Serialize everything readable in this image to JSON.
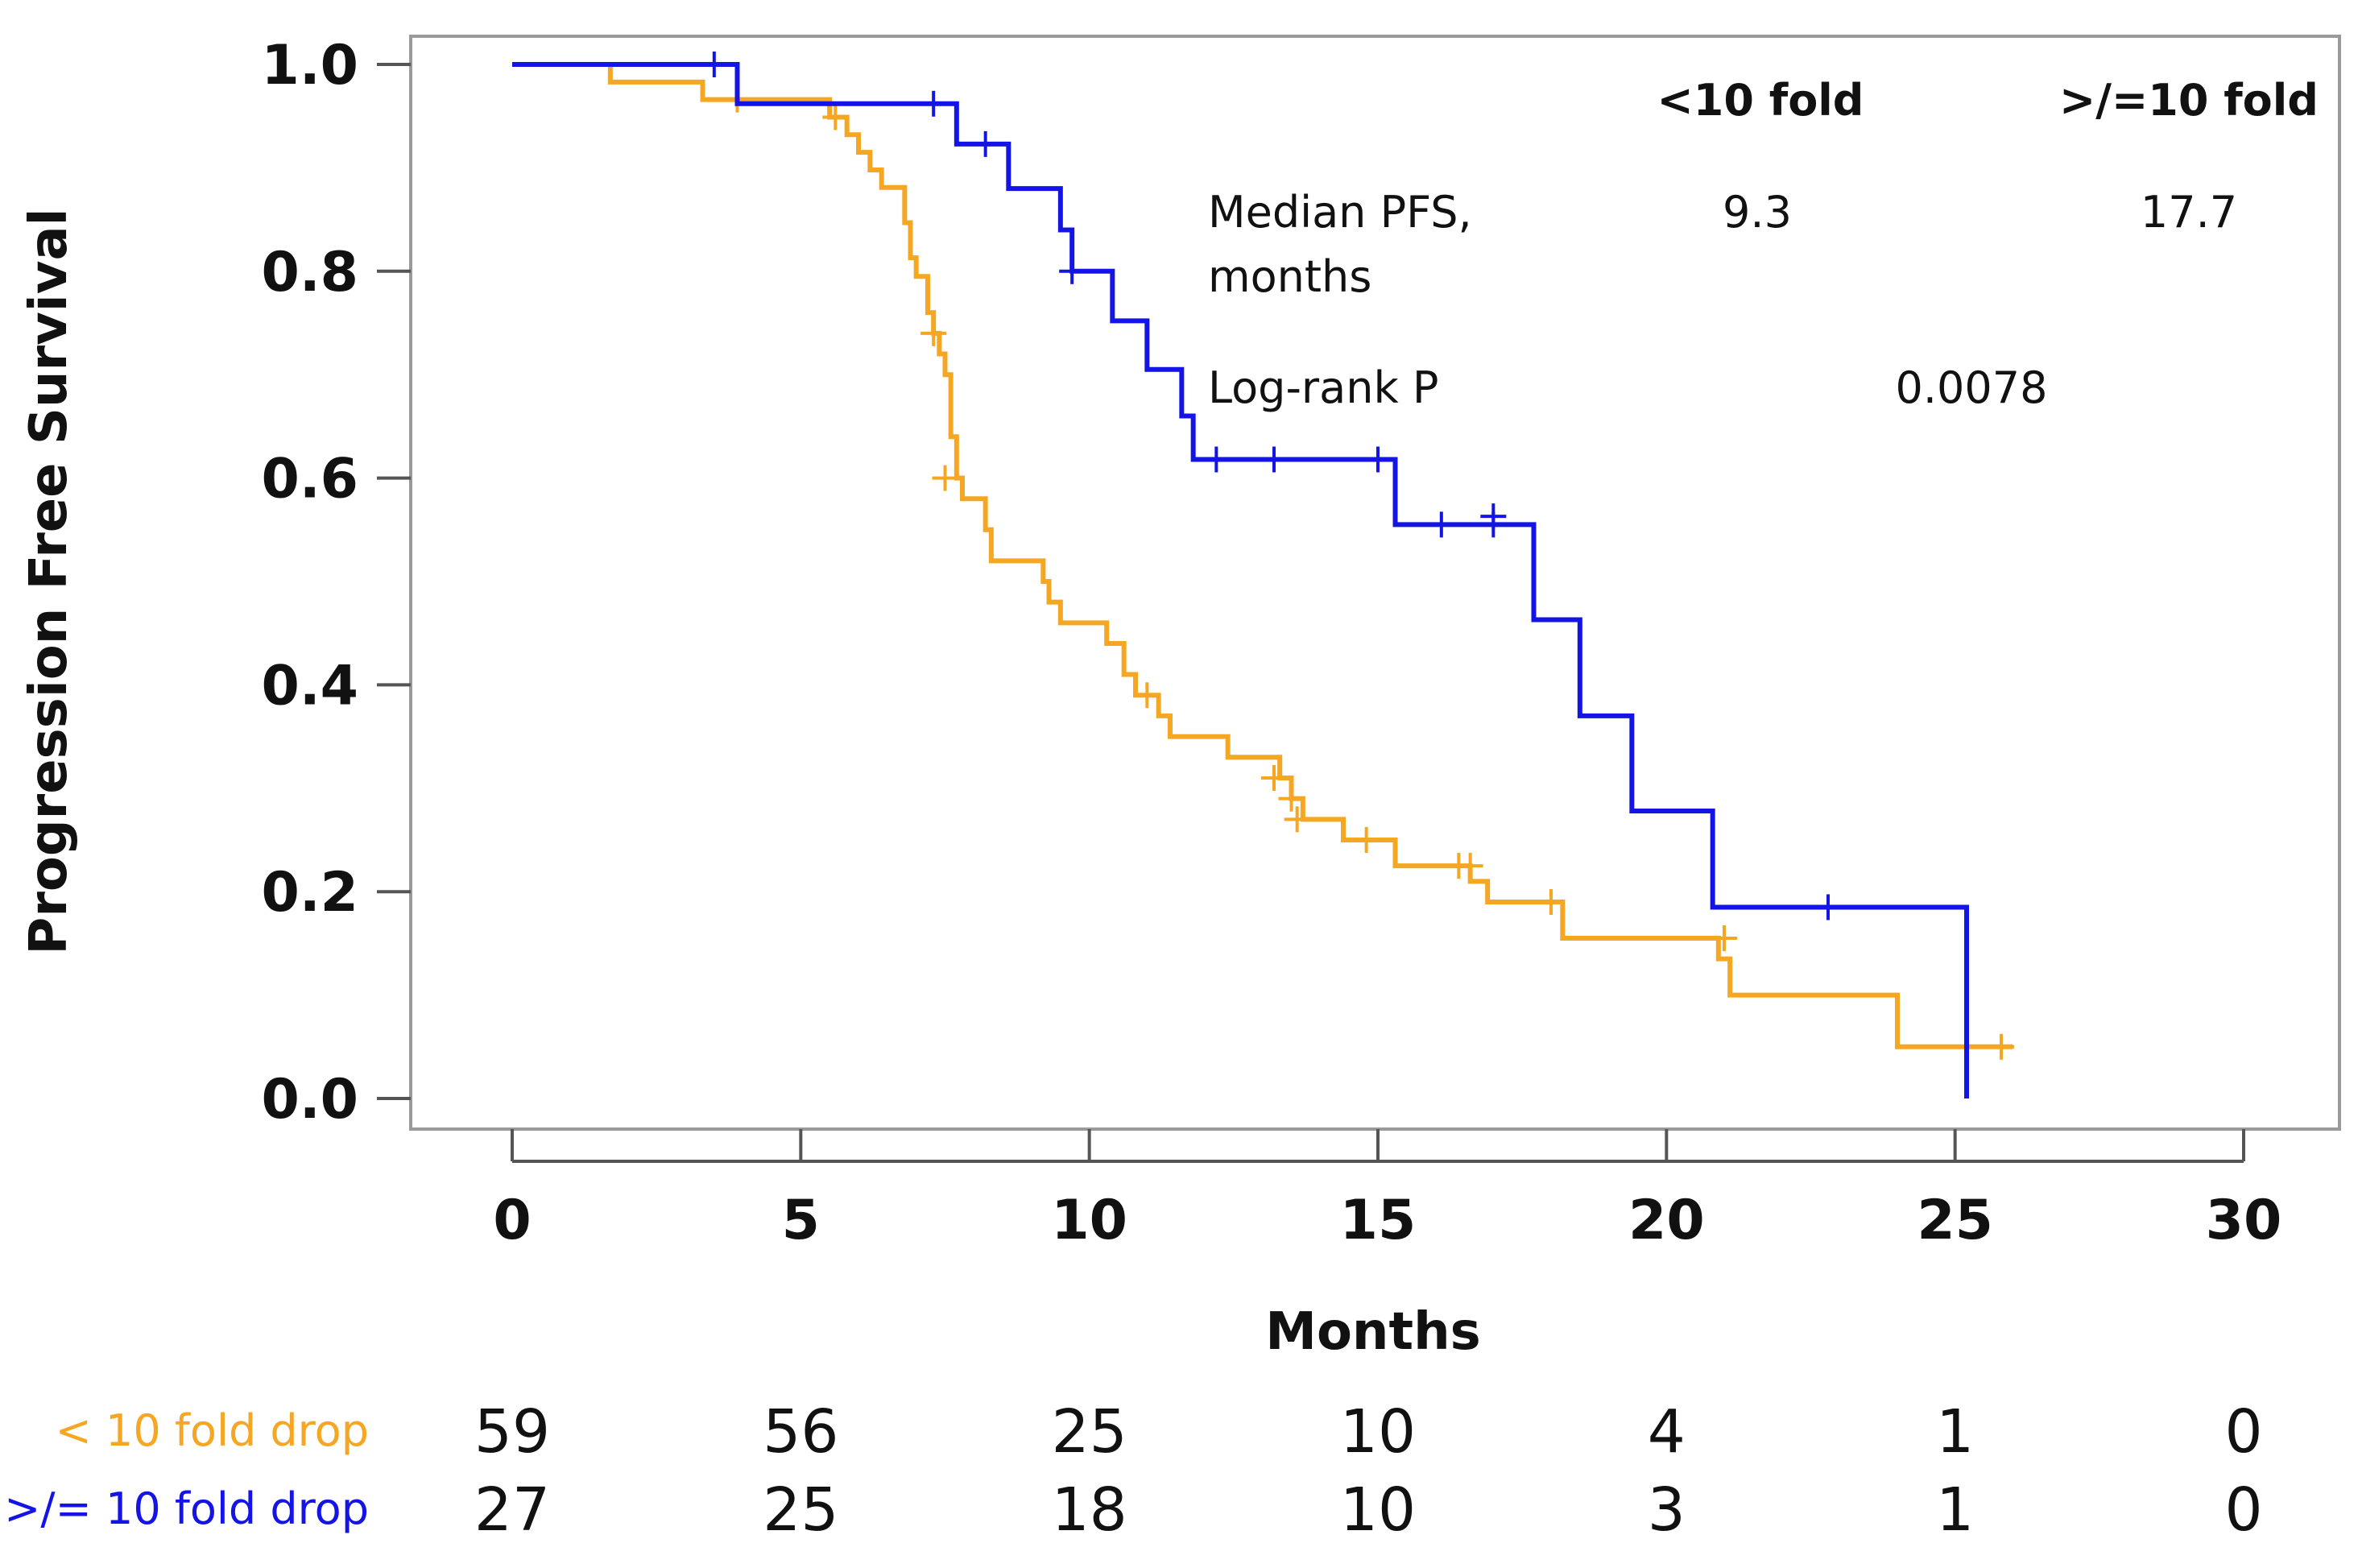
{
  "chart_data": {
    "type": "line",
    "subtype": "kaplan-meier",
    "title": "",
    "xlabel": "Months",
    "ylabel": "Progression Free Survival",
    "xlim": [
      0,
      30
    ],
    "ylim": [
      0,
      1.0
    ],
    "xticks": [
      0,
      5,
      10,
      15,
      20,
      25,
      30
    ],
    "xtick_labels": [
      "0",
      "5",
      "10",
      "15",
      "20",
      "25",
      "30"
    ],
    "yticks": [
      0,
      0.2,
      0.4,
      0.6,
      0.8,
      1.0
    ],
    "ytick_labels": [
      "0.0",
      "0.2",
      "0.4",
      "0.6",
      "0.8",
      "1.0"
    ],
    "grid": false,
    "series": [
      {
        "name": "< 10 fold drop",
        "color": "#f5a623",
        "steps": [
          [
            0,
            1.0
          ],
          [
            1.7,
            0.983
          ],
          [
            3.3,
            0.966
          ],
          [
            5.5,
            0.949
          ],
          [
            5.8,
            0.932
          ],
          [
            6.0,
            0.915
          ],
          [
            6.2,
            0.898
          ],
          [
            6.4,
            0.881
          ],
          [
            6.8,
            0.847
          ],
          [
            6.9,
            0.813
          ],
          [
            7.0,
            0.795
          ],
          [
            7.2,
            0.76
          ],
          [
            7.3,
            0.74
          ],
          [
            7.4,
            0.72
          ],
          [
            7.5,
            0.7
          ],
          [
            7.6,
            0.64
          ],
          [
            7.7,
            0.6
          ],
          [
            7.8,
            0.58
          ],
          [
            8.2,
            0.55
          ],
          [
            8.3,
            0.52
          ],
          [
            9.2,
            0.5
          ],
          [
            9.3,
            0.48
          ],
          [
            9.5,
            0.46
          ],
          [
            10.3,
            0.44
          ],
          [
            10.6,
            0.41
          ],
          [
            10.8,
            0.39
          ],
          [
            11.2,
            0.37
          ],
          [
            11.4,
            0.35
          ],
          [
            12.4,
            0.33
          ],
          [
            13.3,
            0.31
          ],
          [
            13.5,
            0.29
          ],
          [
            13.7,
            0.27
          ],
          [
            14.4,
            0.25
          ],
          [
            15.3,
            0.225
          ],
          [
            16.6,
            0.21
          ],
          [
            16.9,
            0.19
          ],
          [
            18.2,
            0.155
          ],
          [
            20.9,
            0.135
          ],
          [
            21.1,
            0.1
          ],
          [
            24.0,
            0.05
          ],
          [
            26.0,
            0.05
          ]
        ],
        "censors": [
          [
            3.9,
            0.966
          ],
          [
            5.6,
            0.949
          ],
          [
            7.3,
            0.74
          ],
          [
            7.5,
            0.6
          ],
          [
            11.0,
            0.39
          ],
          [
            13.2,
            0.31
          ],
          [
            13.5,
            0.29
          ],
          [
            13.6,
            0.27
          ],
          [
            14.8,
            0.25
          ],
          [
            16.4,
            0.225
          ],
          [
            16.6,
            0.225
          ],
          [
            18.0,
            0.19
          ],
          [
            21.0,
            0.155
          ],
          [
            25.8,
            0.05
          ]
        ]
      },
      {
        "name": ">/= 10 fold drop",
        "color": "#1414e6",
        "steps": [
          [
            0,
            1.0
          ],
          [
            3.9,
            0.962
          ],
          [
            7.7,
            0.923
          ],
          [
            8.6,
            0.88
          ],
          [
            9.5,
            0.84
          ],
          [
            9.7,
            0.8
          ],
          [
            10.4,
            0.752
          ],
          [
            11.0,
            0.705
          ],
          [
            11.6,
            0.66
          ],
          [
            11.8,
            0.618
          ],
          [
            15.3,
            0.555
          ],
          [
            17.7,
            0.463
          ],
          [
            18.5,
            0.37
          ],
          [
            19.4,
            0.278
          ],
          [
            20.8,
            0.185
          ],
          [
            25.2,
            0.0
          ]
        ],
        "censors": [
          [
            3.5,
            1.0
          ],
          [
            7.3,
            0.962
          ],
          [
            8.2,
            0.923
          ],
          [
            9.7,
            0.8
          ],
          [
            12.2,
            0.618
          ],
          [
            13.2,
            0.618
          ],
          [
            15.0,
            0.618
          ],
          [
            16.1,
            0.555
          ],
          [
            17.0,
            0.555
          ],
          [
            17.0,
            0.563
          ],
          [
            22.8,
            0.185
          ]
        ]
      }
    ],
    "annotations": {
      "col_lt10": "<10 fold",
      "col_ge10": ">/=10 fold",
      "median_label_line1": "Median PFS,",
      "median_label_line2": "months",
      "median_lt10": "9.3",
      "median_ge10": "17.7",
      "logrank_label": "Log-rank P",
      "logrank_value": "0.0078"
    },
    "risk_table": {
      "times": [
        0,
        5,
        10,
        15,
        20,
        25,
        30
      ],
      "rows": [
        {
          "label": "< 10 fold drop",
          "color": "#f5a623",
          "values": [
            "59",
            "56",
            "25",
            "10",
            "4",
            "1",
            "0"
          ]
        },
        {
          "label": ">/= 10 fold drop",
          "color": "#1414e6",
          "values": [
            "27",
            "25",
            "18",
            "10",
            "3",
            "1",
            "0"
          ]
        }
      ]
    }
  }
}
